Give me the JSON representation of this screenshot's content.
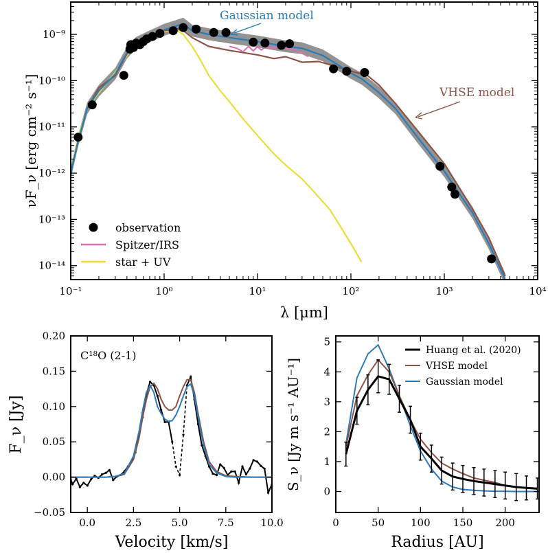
{
  "colors": {
    "observation": "#000000",
    "spitzer": "#d96fb7",
    "star_uv": "#eddc3a",
    "gaussian": "#2b7bba",
    "vhse": "#8c5346",
    "band": "#808080",
    "black_obs": "#000000"
  },
  "chart_data": [
    {
      "type": "line",
      "xlabel": "λ [μm]",
      "ylabel": "νF_ν [erg cm⁻² s⁻¹]",
      "xscale": "log",
      "yscale": "log",
      "xlim": [
        0.1,
        10000
      ],
      "ylim": [
        5e-15,
        5e-09
      ],
      "x_tick_labels": [
        "10⁻¹",
        "10⁰",
        "10¹",
        "10²",
        "10³",
        "10⁴"
      ],
      "y_tick_labels": [
        "10⁻¹⁴",
        "10⁻¹³",
        "10⁻¹²",
        "10⁻¹¹",
        "10⁻¹⁰",
        "10⁻⁹"
      ],
      "legend": {
        "placement": "lower-left",
        "entries": [
          "observation",
          "Spitzer/IRS",
          "star + UV"
        ]
      },
      "annotations": [
        "Gaussian model",
        "VHSE model"
      ],
      "observations": {
        "name": "observation",
        "x": [
          0.12,
          0.17,
          0.37,
          0.43,
          0.44,
          0.47,
          0.5,
          0.55,
          0.6,
          0.65,
          0.75,
          0.9,
          1.25,
          1.6,
          2.2,
          3.4,
          4.6,
          9.0,
          12,
          18,
          22,
          65,
          90,
          140,
          900,
          1200,
          1300,
          3200
        ],
        "y": [
          6e-12,
          3e-11,
          1.3e-10,
          4.8e-10,
          6e-10,
          5.2e-10,
          6.5e-10,
          6e-10,
          7e-10,
          8e-10,
          9e-10,
          1.05e-09,
          1.2e-09,
          1.4e-09,
          1.3e-09,
          1.1e-09,
          1.1e-09,
          6.8e-10,
          6.5e-10,
          5.8e-10,
          6.3e-10,
          1.8e-10,
          1.6e-10,
          1.5e-10,
          1.4e-12,
          5e-13,
          3.5e-13,
          1.4e-14
        ]
      },
      "series": [
        {
          "name": "Spitzer/IRS",
          "x": [
            5,
            6,
            7,
            8,
            9,
            10,
            11,
            12,
            14,
            16,
            18,
            20,
            25,
            30,
            35
          ],
          "y": [
            5.5e-10,
            5e-10,
            4.2e-10,
            5.5e-10,
            4.4e-10,
            5.4e-10,
            4.6e-10,
            5.3e-10,
            5.1e-10,
            5.2e-10,
            5.4e-10,
            5e-10,
            4.6e-10,
            3.9e-10,
            3.3e-10
          ]
        },
        {
          "name": "star + UV",
          "x": [
            0.1,
            0.12,
            0.15,
            0.2,
            0.3,
            0.4,
            0.5,
            0.7,
            1.0,
            1.3,
            1.6,
            2.0,
            2.5,
            3.0,
            4.0,
            5.0,
            7.0,
            10,
            15,
            20,
            30,
            40,
            60,
            100,
            130
          ],
          "y": [
            1e-12,
            6e-12,
            2.5e-11,
            5.5e-11,
            1.5e-10,
            3.5e-10,
            6e-10,
            9e-10,
            1.15e-09,
            1.3e-09,
            1e-09,
            5.5e-10,
            2.6e-10,
            1.3e-10,
            6e-11,
            3.5e-11,
            1.5e-11,
            6.5e-12,
            2.6e-12,
            1.5e-12,
            7.5e-13,
            4e-13,
            1.6e-13,
            3e-14,
            1.2e-14
          ]
        },
        {
          "name": "Gaussian model",
          "x": [
            0.1,
            0.12,
            0.15,
            0.2,
            0.3,
            0.4,
            0.5,
            0.7,
            1.0,
            1.6,
            2.0,
            3.0,
            5.0,
            10,
            20,
            30,
            50,
            70,
            100,
            130,
            200,
            300,
            500,
            1000,
            2000,
            3000,
            4500
          ],
          "y": [
            1e-12,
            5e-12,
            2.5e-11,
            6e-11,
            1.4e-10,
            4e-10,
            6.5e-10,
            9e-10,
            1.25e-09,
            1.7e-09,
            1.2e-09,
            1e-09,
            8.5e-10,
            7e-10,
            5.5e-10,
            5e-10,
            3.5e-10,
            2.3e-10,
            1.45e-10,
            1.1e-10,
            5.5e-11,
            2.5e-11,
            6.5e-12,
            1.1e-12,
            1.4e-13,
            3e-14,
            5e-15
          ]
        },
        {
          "name": "VHSE model",
          "x": [
            0.1,
            0.12,
            0.15,
            0.2,
            0.3,
            0.4,
            0.5,
            0.7,
            1.0,
            1.5,
            2.0,
            3.0,
            5.0,
            10,
            15,
            20,
            30,
            45,
            60,
            70,
            100,
            150,
            200,
            300,
            500,
            1000,
            2000,
            3000,
            4500
          ],
          "y": [
            1e-12,
            5e-12,
            2.5e-11,
            7e-11,
            1.3e-10,
            3.8e-10,
            6.5e-10,
            9e-10,
            1.2e-09,
            1.35e-09,
            8.5e-10,
            5.5e-10,
            4.5e-10,
            3.6e-10,
            3e-10,
            3.3e-10,
            2.5e-10,
            2.6e-10,
            2.2e-10,
            2e-10,
            1.6e-10,
            1.3e-10,
            8e-11,
            3.2e-11,
            9e-12,
            1.6e-12,
            1.7e-13,
            4e-14,
            6e-15
          ]
        }
      ]
    },
    {
      "type": "line",
      "xlabel": "Velocity [km/s]",
      "ylabel": "F_ν [Jy]",
      "xlim": [
        -0.9,
        10.0
      ],
      "ylim": [
        -0.05,
        0.2
      ],
      "x_tick_labels": [
        "0.0",
        "2.5",
        "5.0",
        "7.5",
        "10.0"
      ],
      "y_tick_labels": [
        "−0.05",
        "0.00",
        "0.05",
        "0.10",
        "0.15",
        "0.20"
      ],
      "label": "C¹⁸O (2-1)",
      "series": [
        {
          "name": "observation",
          "x": [
            -0.9,
            -0.8,
            -0.6,
            -0.4,
            -0.2,
            0.0,
            0.2,
            0.4,
            0.6,
            0.8,
            1.0,
            1.2,
            1.4,
            1.6,
            1.8,
            2.0,
            2.2,
            2.4,
            2.6,
            2.8,
            3.0,
            3.2,
            3.4,
            3.6,
            3.8,
            4.0,
            4.2,
            4.4,
            4.6,
            4.8,
            5.0,
            5.2,
            5.4,
            5.6,
            5.8,
            6.0,
            6.2,
            6.4,
            6.6,
            6.8,
            7.0,
            7.2,
            7.4,
            7.6,
            7.8,
            8.0,
            8.2,
            8.4,
            8.6,
            8.8,
            9.0,
            9.2,
            9.4,
            9.6,
            9.8,
            10.0
          ],
          "y": [
            -0.003,
            -0.01,
            -0.002,
            -0.014,
            -0.008,
            -0.012,
            -0.003,
            0.002,
            -0.001,
            0.004,
            0.006,
            0.01,
            -0.004,
            0.001,
            0.003,
            0.008,
            0.015,
            0.022,
            0.035,
            0.06,
            0.085,
            0.118,
            0.135,
            0.13,
            0.115,
            0.095,
            0.078,
            0.078,
            0.05,
            0.015,
            0.003,
            0.06,
            0.13,
            0.142,
            0.11,
            0.075,
            0.045,
            0.03,
            0.015,
            0.005,
            0.003,
            0.018,
            0.013,
            0.003,
            0.008,
            0.008,
            -0.008,
            0.015,
            0.004,
            0.012,
            0.024,
            0.022,
            0.016,
            0.012,
            -0.022,
            -0.01
          ]
        },
        {
          "name": "VHSE model",
          "x": [
            -0.9,
            0.0,
            1.0,
            1.5,
            2.0,
            2.5,
            2.8,
            3.0,
            3.2,
            3.4,
            3.6,
            3.8,
            4.0,
            4.2,
            4.4,
            4.6,
            4.8,
            5.0,
            5.2,
            5.4,
            5.6,
            5.8,
            6.0,
            6.3,
            6.6,
            7.0,
            7.5,
            8.0,
            9.0,
            10.0
          ],
          "y": [
            0.0,
            0.0,
            0.0,
            0.001,
            0.004,
            0.025,
            0.055,
            0.085,
            0.11,
            0.128,
            0.133,
            0.125,
            0.11,
            0.1,
            0.095,
            0.095,
            0.1,
            0.115,
            0.128,
            0.138,
            0.138,
            0.12,
            0.09,
            0.05,
            0.022,
            0.008,
            0.002,
            0.001,
            0.0,
            0.0
          ]
        },
        {
          "name": "Gaussian model",
          "x": [
            -0.9,
            0.0,
            1.0,
            1.5,
            2.0,
            2.5,
            2.8,
            3.0,
            3.2,
            3.4,
            3.6,
            3.8,
            4.0,
            4.2,
            4.4,
            4.6,
            4.8,
            5.0,
            5.2,
            5.4,
            5.6,
            5.8,
            6.0,
            6.3,
            6.6,
            7.0,
            7.5,
            8.0,
            9.0,
            10.0
          ],
          "y": [
            0.0,
            0.0,
            0.0,
            0.001,
            0.005,
            0.03,
            0.065,
            0.095,
            0.12,
            0.13,
            0.12,
            0.1,
            0.09,
            0.082,
            0.079,
            0.08,
            0.088,
            0.1,
            0.115,
            0.128,
            0.132,
            0.115,
            0.085,
            0.045,
            0.018,
            0.006,
            0.001,
            0.0,
            0.0,
            0.0
          ]
        }
      ]
    },
    {
      "type": "line",
      "xlabel": "Radius [AU]",
      "ylabel": "S_ν [Jy m s⁻¹ AU⁻¹]",
      "xlim": [
        0,
        240
      ],
      "ylim": [
        -0.7,
        5.2
      ],
      "x_tick_labels": [
        "0",
        "50",
        "100",
        "150",
        "200"
      ],
      "y_tick_labels": [
        "0",
        "1",
        "2",
        "3",
        "4",
        "5"
      ],
      "legend": {
        "placement": "top-right",
        "entries": [
          "Huang et al. (2020)",
          "VHSE model",
          "Gaussian model"
        ]
      },
      "series": [
        {
          "name": "Huang et al. (2020)",
          "x": [
            12,
            25,
            38,
            50,
            63,
            75,
            88,
            100,
            113,
            125,
            138,
            150,
            163,
            175,
            188,
            200,
            213,
            225,
            238
          ],
          "y": [
            1.25,
            2.7,
            3.4,
            3.85,
            3.75,
            3.1,
            2.4,
            1.5,
            1.1,
            0.7,
            0.5,
            0.42,
            0.35,
            0.3,
            0.25,
            0.2,
            0.15,
            0.12,
            0.1
          ],
          "err": [
            0.4,
            0.45,
            0.5,
            0.55,
            0.5,
            0.45,
            0.45,
            0.45,
            0.45,
            0.45,
            0.45,
            0.45,
            0.45,
            0.45,
            0.45,
            0.45,
            0.45,
            0.4,
            0.35
          ]
        },
        {
          "name": "VHSE model",
          "x": [
            12,
            25,
            38,
            50,
            63,
            75,
            88,
            100,
            113,
            125,
            138,
            150,
            163,
            175,
            188,
            200,
            213,
            225,
            238
          ],
          "y": [
            1.5,
            3.2,
            3.9,
            4.4,
            4.0,
            3.2,
            2.4,
            1.75,
            1.3,
            0.95,
            0.75,
            0.6,
            0.45,
            0.38,
            0.3,
            0.2,
            0.15,
            0.12,
            0.08
          ]
        },
        {
          "name": "Gaussian model",
          "x": [
            12,
            25,
            38,
            50,
            63,
            75,
            88,
            100,
            113,
            125,
            138,
            150,
            163,
            175,
            188,
            200,
            213,
            225,
            238
          ],
          "y": [
            1.6,
            3.8,
            4.6,
            4.9,
            4.1,
            3.2,
            2.2,
            1.35,
            0.75,
            0.35,
            0.15,
            0.07,
            0.04,
            0.02,
            0.01,
            0.01,
            0.0,
            0.0,
            0.0
          ]
        }
      ]
    }
  ]
}
